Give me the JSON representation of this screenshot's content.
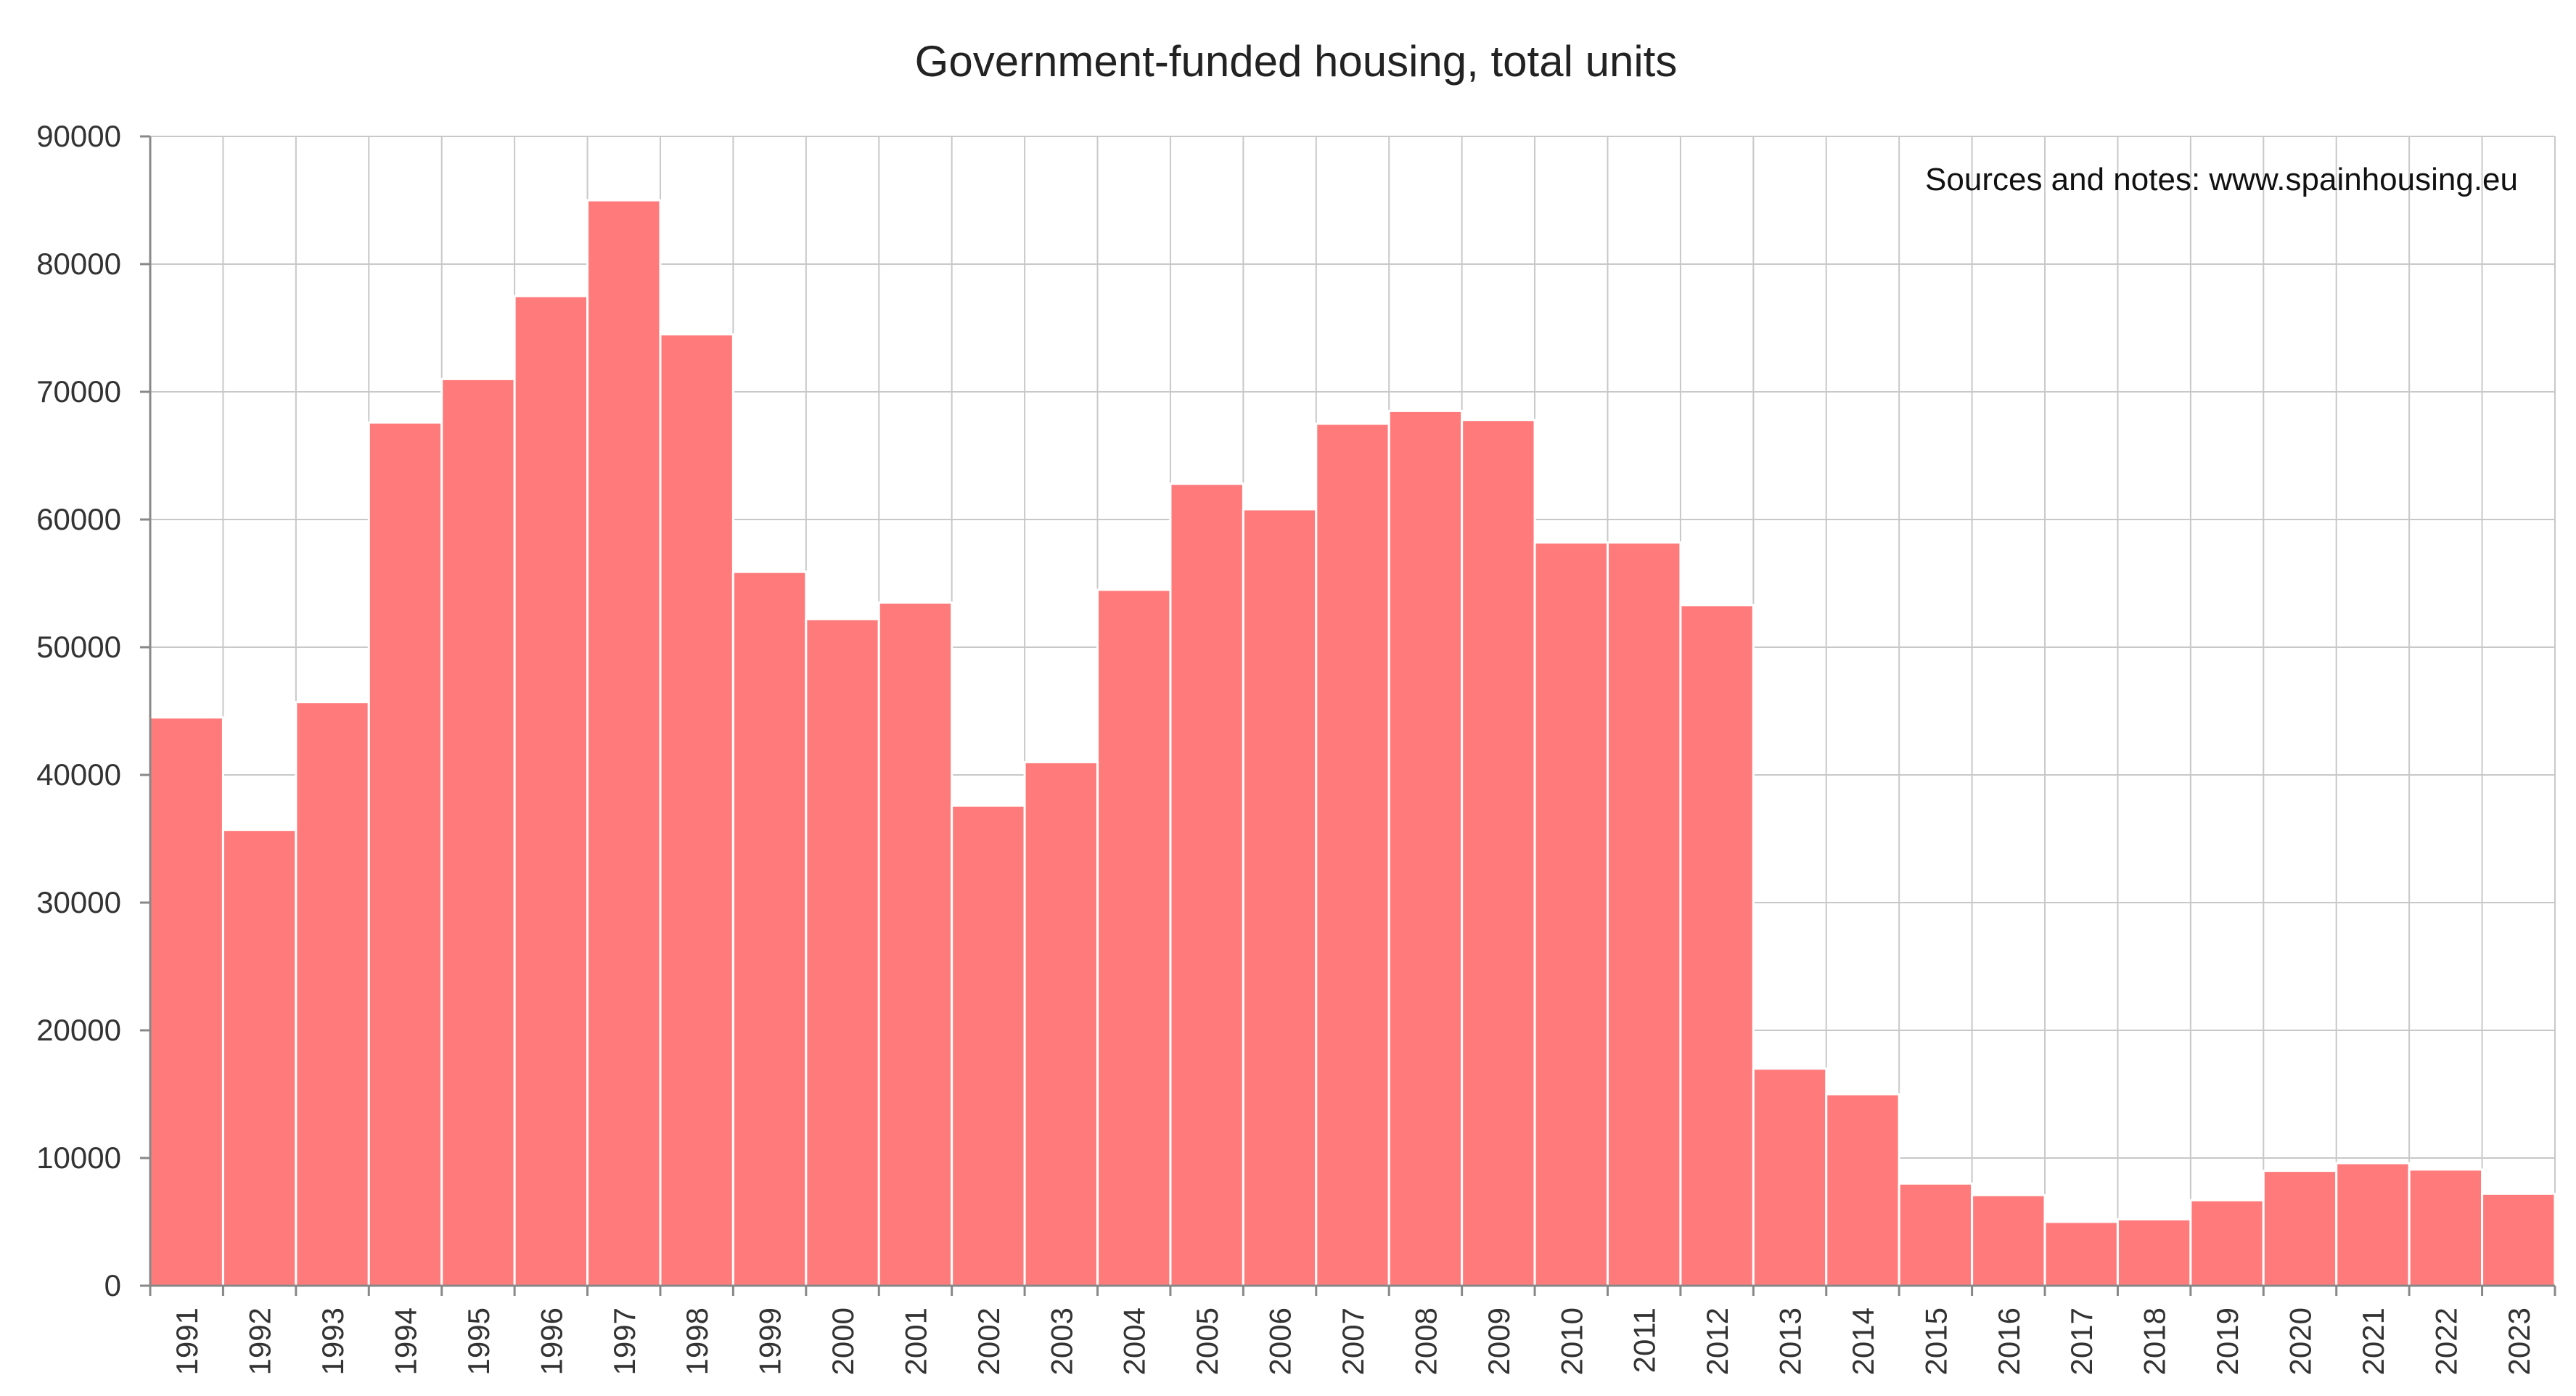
{
  "chart_data": {
    "type": "bar",
    "title": "Government-funded housing, total units",
    "annotation": "Sources and notes: www.spainhousing.eu",
    "xlabel": "",
    "ylabel": "",
    "ylim": [
      0,
      90000
    ],
    "yticks": [
      "0",
      "10000",
      "20000",
      "30000",
      "40000",
      "50000",
      "60000",
      "70000",
      "80000",
      "90000"
    ],
    "grid": true,
    "legend": "none",
    "bar_color": "#ff7b7b",
    "categories": [
      "1991",
      "1992",
      "1993",
      "1994",
      "1995",
      "1996",
      "1997",
      "1998",
      "1999",
      "2000",
      "2001",
      "2002",
      "2003",
      "2004",
      "2005",
      "2006",
      "2007",
      "2008",
      "2009",
      "2010",
      "2011",
      "2012",
      "2013",
      "2014",
      "2015",
      "2016",
      "2017",
      "2018",
      "2019",
      "2020",
      "2021",
      "2022",
      "2023"
    ],
    "values": [
      44500,
      35700,
      45700,
      67600,
      71000,
      77500,
      85000,
      74500,
      55900,
      52200,
      53500,
      37600,
      41000,
      54500,
      62800,
      60800,
      67500,
      68500,
      67800,
      58200,
      58200,
      53300,
      17000,
      15000,
      8000,
      7100,
      5000,
      5200,
      6700,
      9000,
      9600,
      9100,
      7200
    ]
  }
}
